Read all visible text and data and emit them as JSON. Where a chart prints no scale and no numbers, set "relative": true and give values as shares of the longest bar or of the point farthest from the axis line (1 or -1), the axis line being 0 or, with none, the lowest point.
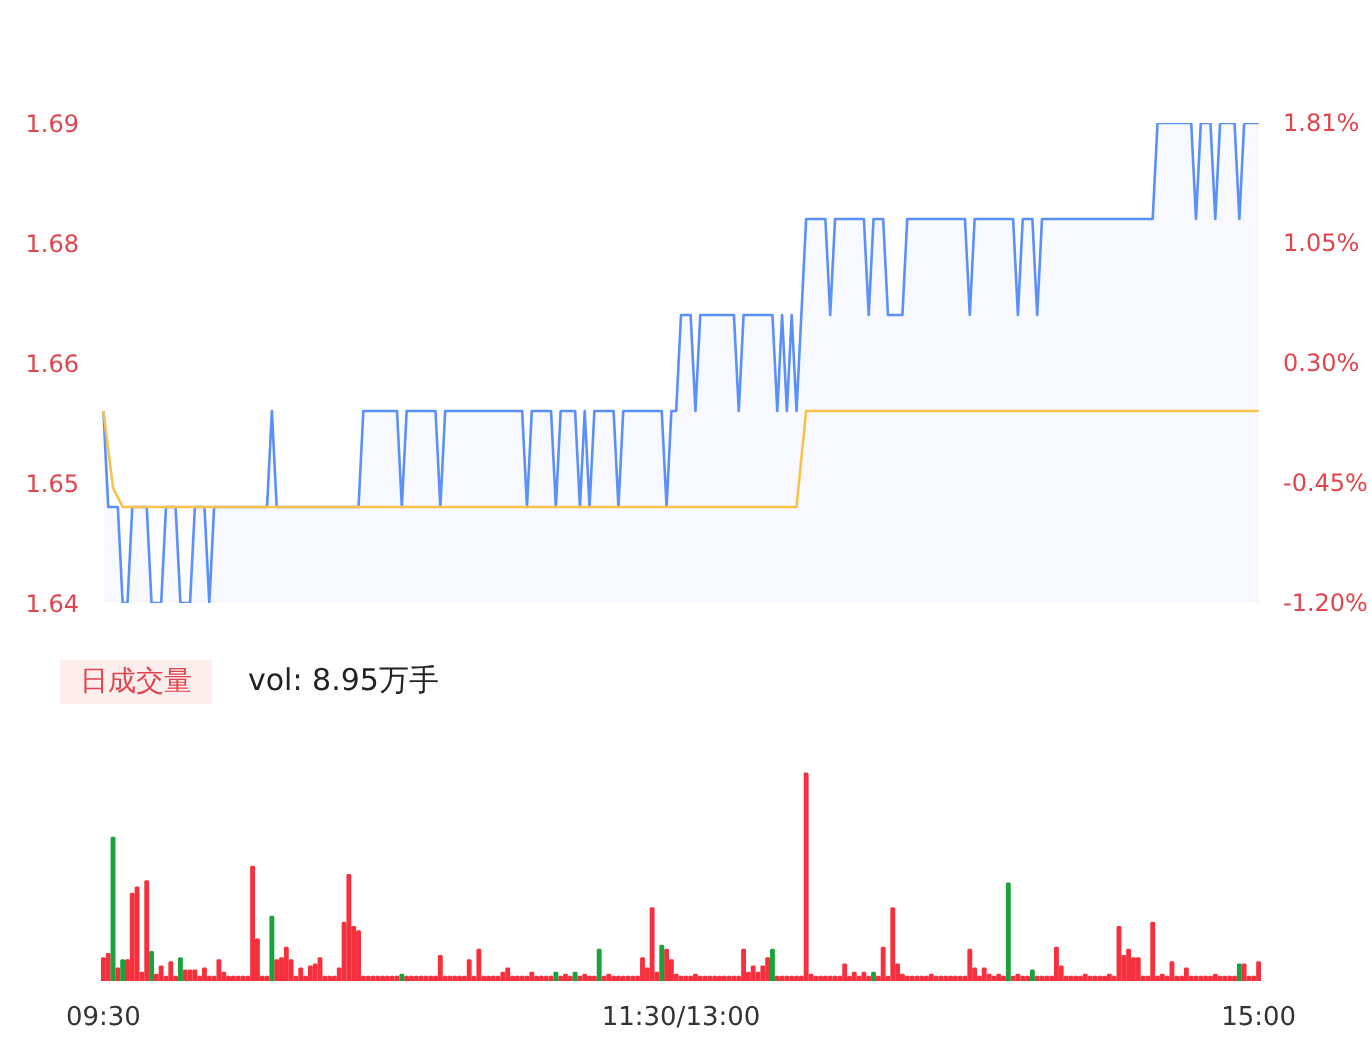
{
  "chart_data": [
    {
      "type": "line",
      "ylim": [
        1.64,
        1.69
      ],
      "categories": [
        null,
        null,
        null,
        null,
        null,
        null,
        null,
        null,
        null,
        null,
        null,
        null,
        null,
        null,
        null,
        null,
        null,
        null,
        null,
        null,
        null,
        null,
        null,
        null,
        null,
        null,
        null,
        null,
        null,
        null,
        null,
        null,
        null,
        null,
        null,
        null,
        null,
        null,
        null,
        null,
        null,
        null,
        null,
        null,
        null,
        null,
        null,
        null,
        null,
        null,
        null,
        null,
        null,
        null,
        null,
        null,
        null,
        null,
        null,
        null,
        null,
        null,
        null,
        null,
        null,
        null,
        null,
        null,
        null,
        null,
        null,
        null,
        null,
        null,
        null,
        null,
        null,
        null,
        null,
        null,
        null,
        null,
        null,
        null,
        null,
        null,
        null,
        null,
        null,
        null,
        null,
        null,
        null,
        null,
        null,
        null,
        null,
        null,
        null,
        null,
        null,
        null,
        null,
        null,
        null,
        null,
        null,
        null,
        null,
        null,
        null,
        null,
        null,
        null,
        null,
        null,
        null,
        null,
        null,
        null,
        null,
        null,
        null,
        null,
        null,
        null,
        null,
        null,
        null,
        null,
        null,
        null,
        null,
        null,
        null,
        null,
        null,
        null,
        null,
        null,
        null,
        null,
        null,
        null,
        null,
        null,
        null,
        null,
        null,
        null,
        null,
        null,
        null,
        null,
        null,
        null,
        null,
        null,
        null,
        null,
        null,
        null,
        null,
        null,
        null,
        null,
        null,
        null,
        null,
        null,
        null,
        null,
        null,
        null,
        null,
        null,
        null,
        null,
        null,
        null,
        null,
        null,
        null,
        null,
        null,
        null,
        null,
        null,
        null,
        null,
        null,
        null,
        null,
        null,
        null,
        null,
        null,
        null,
        null,
        null,
        null,
        null,
        null,
        null,
        null,
        null,
        null,
        null,
        null,
        null,
        null,
        null,
        null,
        null,
        null,
        null,
        null,
        null,
        null,
        null,
        null,
        null,
        null,
        null,
        null,
        null,
        null,
        null,
        null,
        null,
        null,
        null,
        null,
        null,
        null,
        null,
        null,
        null,
        null,
        null,
        null
      ],
      "yticks": [
        1.64,
        {
          "value": 1.6525,
          "label": "1.65"
        },
        {
          "value": 1.665,
          "label": "1.66"
        },
        {
          "value": 1.6775,
          "label": "1.68"
        },
        1.69
      ],
      "y2lim": [
        -1.2048,
        1.8072
      ],
      "y2ticks": [
        {
          "value": -1.2048,
          "label": "-1.20%"
        },
        {
          "value": -0.4518,
          "label": "-0.45%"
        },
        {
          "value": 0.3012,
          "label": "0.30%"
        },
        {
          "value": 1.0542,
          "label": "1.05%"
        },
        {
          "value": 1.8072,
          "label": "1.81%"
        }
      ],
      "tick_labels": "y",
      "grid": false,
      "series": [
        {
          "type": "area",
          "color": "#5b8ff9",
          "values": [
            1.66,
            1.65,
            1.65,
            1.65,
            1.64,
            1.64,
            1.65,
            1.65,
            1.65,
            1.65,
            1.64,
            1.64,
            1.64,
            1.65,
            1.65,
            1.65,
            1.64,
            1.64,
            1.64,
            1.65,
            1.65,
            1.65,
            1.64,
            1.65,
            1.65,
            1.65,
            1.65,
            1.65,
            1.65,
            1.65,
            1.65,
            1.65,
            1.65,
            1.65,
            1.65,
            1.66,
            1.65,
            1.65,
            1.65,
            1.65,
            1.65,
            1.65,
            1.65,
            1.65,
            1.65,
            1.65,
            1.65,
            1.65,
            1.65,
            1.65,
            1.65,
            1.65,
            1.65,
            1.65,
            1.66,
            1.66,
            1.66,
            1.66,
            1.66,
            1.66,
            1.66,
            1.66,
            1.65,
            1.66,
            1.66,
            1.66,
            1.66,
            1.66,
            1.66,
            1.66,
            1.65,
            1.66,
            1.66,
            1.66,
            1.66,
            1.66,
            1.66,
            1.66,
            1.66,
            1.66,
            1.66,
            1.66,
            1.66,
            1.66,
            1.66,
            1.66,
            1.66,
            1.66,
            1.65,
            1.66,
            1.66,
            1.66,
            1.66,
            1.66,
            1.65,
            1.66,
            1.66,
            1.66,
            1.66,
            1.65,
            1.66,
            1.65,
            1.66,
            1.66,
            1.66,
            1.66,
            1.66,
            1.65,
            1.66,
            1.66,
            1.66,
            1.66,
            1.66,
            1.66,
            1.66,
            1.66,
            1.66,
            1.65,
            1.66,
            1.66,
            1.67,
            1.67,
            1.67,
            1.66,
            1.67,
            1.67,
            1.67,
            1.67,
            1.67,
            1.67,
            1.67,
            1.67,
            1.66,
            1.67,
            1.67,
            1.67,
            1.67,
            1.67,
            1.67,
            1.67,
            1.66,
            1.67,
            1.66,
            1.67,
            1.66,
            1.67,
            1.68,
            1.68,
            1.68,
            1.68,
            1.68,
            1.67,
            1.68,
            1.68,
            1.68,
            1.68,
            1.68,
            1.68,
            1.68,
            1.67,
            1.68,
            1.68,
            1.68,
            1.67,
            1.67,
            1.67,
            1.67,
            1.68,
            1.68,
            1.68,
            1.68,
            1.68,
            1.68,
            1.68,
            1.68,
            1.68,
            1.68,
            1.68,
            1.68,
            1.68,
            1.67,
            1.68,
            1.68,
            1.68,
            1.68,
            1.68,
            1.68,
            1.68,
            1.68,
            1.68,
            1.67,
            1.68,
            1.68,
            1.68,
            1.67,
            1.68,
            1.68,
            1.68,
            1.68,
            1.68,
            1.68,
            1.68,
            1.68,
            1.68,
            1.68,
            1.68,
            1.68,
            1.68,
            1.68,
            1.68,
            1.68,
            1.68,
            1.68,
            1.68,
            1.68,
            1.68,
            1.68,
            1.68,
            1.68,
            1.69,
            1.69,
            1.69,
            1.69,
            1.69,
            1.69,
            1.69,
            1.69,
            1.68,
            1.69,
            1.69,
            1.69,
            1.68,
            1.69,
            1.69,
            1.69,
            1.69,
            1.68,
            1.69,
            1.69,
            1.69,
            1.69
          ]
        },
        {
          "type": "line",
          "color": "#f8c24d",
          "values": [
            1.66,
            1.656,
            1.652,
            1.651,
            1.65,
            1.65,
            1.65,
            1.65,
            1.65,
            1.65,
            1.65,
            1.65,
            1.65,
            1.65,
            1.65,
            1.65,
            1.65,
            1.65,
            1.65,
            1.65,
            1.65,
            1.65,
            1.65,
            1.65,
            1.65,
            1.65,
            1.65,
            1.65,
            1.65,
            1.65,
            1.65,
            1.65,
            1.65,
            1.65,
            1.65,
            1.65,
            1.65,
            1.65,
            1.65,
            1.65,
            1.65,
            1.65,
            1.65,
            1.65,
            1.65,
            1.65,
            1.65,
            1.65,
            1.65,
            1.65,
            1.65,
            1.65,
            1.65,
            1.65,
            1.65,
            1.65,
            1.65,
            1.65,
            1.65,
            1.65,
            1.65,
            1.65,
            1.65,
            1.65,
            1.65,
            1.65,
            1.65,
            1.65,
            1.65,
            1.65,
            1.65,
            1.65,
            1.65,
            1.65,
            1.65,
            1.65,
            1.65,
            1.65,
            1.65,
            1.65,
            1.65,
            1.65,
            1.65,
            1.65,
            1.65,
            1.65,
            1.65,
            1.65,
            1.65,
            1.65,
            1.65,
            1.65,
            1.65,
            1.65,
            1.65,
            1.65,
            1.65,
            1.65,
            1.65,
            1.65,
            1.65,
            1.65,
            1.65,
            1.65,
            1.65,
            1.65,
            1.65,
            1.65,
            1.65,
            1.65,
            1.65,
            1.65,
            1.65,
            1.65,
            1.65,
            1.65,
            1.65,
            1.65,
            1.65,
            1.65,
            1.65,
            1.65,
            1.65,
            1.65,
            1.65,
            1.65,
            1.65,
            1.65,
            1.65,
            1.65,
            1.65,
            1.65,
            1.65,
            1.65,
            1.65,
            1.65,
            1.65,
            1.65,
            1.65,
            1.65,
            1.65,
            1.65,
            1.65,
            1.65,
            1.65,
            1.655,
            1.66,
            1.66,
            1.66,
            1.66,
            1.66,
            1.66,
            1.66,
            1.66,
            1.66,
            1.66,
            1.66,
            1.66,
            1.66,
            1.66,
            1.66,
            1.66,
            1.66,
            1.66,
            1.66,
            1.66,
            1.66,
            1.66,
            1.66,
            1.66,
            1.66,
            1.66,
            1.66,
            1.66,
            1.66,
            1.66,
            1.66,
            1.66,
            1.66,
            1.66,
            1.66,
            1.66,
            1.66,
            1.66,
            1.66,
            1.66,
            1.66,
            1.66,
            1.66,
            1.66,
            1.66,
            1.66,
            1.66,
            1.66,
            1.66,
            1.66,
            1.66,
            1.66,
            1.66,
            1.66,
            1.66,
            1.66,
            1.66,
            1.66,
            1.66,
            1.66,
            1.66,
            1.66,
            1.66,
            1.66,
            1.66,
            1.66,
            1.66,
            1.66,
            1.66,
            1.66,
            1.66,
            1.66,
            1.66,
            1.66,
            1.66,
            1.66,
            1.66,
            1.66,
            1.66,
            1.66,
            1.66,
            1.66,
            1.66,
            1.66,
            1.66,
            1.66,
            1.66,
            1.66,
            1.66,
            1.66,
            1.66,
            1.66,
            1.66,
            1.66,
            1.66
          ]
        }
      ]
    },
    {
      "type": "bar",
      "relative": true,
      "tick_labels": "x",
      "grid": false,
      "categories": [
        "09:30",
        null,
        null,
        null,
        null,
        null,
        null,
        null,
        null,
        null,
        null,
        null,
        null,
        null,
        null,
        null,
        null,
        null,
        null,
        null,
        null,
        null,
        null,
        null,
        null,
        null,
        null,
        null,
        null,
        null,
        null,
        null,
        null,
        null,
        null,
        null,
        null,
        null,
        null,
        null,
        null,
        null,
        null,
        null,
        null,
        null,
        null,
        null,
        null,
        null,
        null,
        null,
        null,
        null,
        null,
        null,
        null,
        null,
        null,
        null,
        null,
        null,
        null,
        null,
        null,
        null,
        null,
        null,
        null,
        null,
        null,
        null,
        null,
        null,
        null,
        null,
        null,
        null,
        null,
        null,
        null,
        null,
        null,
        null,
        null,
        null,
        null,
        null,
        null,
        null,
        null,
        null,
        null,
        null,
        null,
        null,
        null,
        null,
        null,
        null,
        null,
        null,
        null,
        null,
        null,
        null,
        null,
        null,
        null,
        null,
        null,
        null,
        null,
        null,
        null,
        null,
        null,
        null,
        null,
        null,
        "11:30/13:00",
        null,
        null,
        null,
        null,
        null,
        null,
        null,
        null,
        null,
        null,
        null,
        null,
        null,
        null,
        null,
        null,
        null,
        null,
        null,
        null,
        null,
        null,
        null,
        null,
        null,
        null,
        null,
        null,
        null,
        null,
        null,
        null,
        null,
        null,
        null,
        null,
        null,
        null,
        null,
        null,
        null,
        null,
        null,
        null,
        null,
        null,
        null,
        null,
        null,
        null,
        null,
        null,
        null,
        null,
        null,
        null,
        null,
        null,
        null,
        null,
        null,
        null,
        null,
        null,
        null,
        null,
        null,
        null,
        null,
        null,
        null,
        null,
        null,
        null,
        null,
        null,
        null,
        null,
        null,
        null,
        null,
        null,
        null,
        null,
        null,
        null,
        null,
        null,
        null,
        null,
        null,
        null,
        null,
        null,
        null,
        null,
        null,
        null,
        null,
        null,
        null,
        null,
        null,
        null,
        null,
        null,
        null,
        null,
        null,
        null,
        null,
        null,
        null,
        null,
        null,
        null,
        null,
        null,
        null,
        "15:00"
      ],
      "annotations": [
        "日成交量",
        "vol: 8.95万手"
      ],
      "series": [
        {
          "color": "#f5313d",
          "values": [
            0.11,
            0.13,
            null,
            0.06,
            null,
            0.1,
            0.42,
            0.45,
            0.04,
            0.48,
            null,
            0.03,
            0.07,
            0.02,
            0.09,
            0.02,
            null,
            0.05,
            0.05,
            0.05,
            0.02,
            0.06,
            0.02,
            0.02,
            0.1,
            0.04,
            0.02,
            0.02,
            0.02,
            0.02,
            0.02,
            0.55,
            0.2,
            0.02,
            0.02,
            null,
            0.1,
            0.11,
            0.16,
            0.1,
            0.02,
            0.06,
            0.02,
            0.07,
            0.08,
            0.11,
            0.02,
            0.02,
            0.02,
            0.06,
            0.28,
            0.51,
            0.26,
            0.24,
            0.02,
            0.02,
            0.02,
            0.02,
            0.02,
            0.02,
            0.02,
            0.02,
            null,
            0.02,
            0.02,
            0.02,
            0.02,
            0.02,
            0.02,
            0.02,
            0.12,
            0.02,
            0.02,
            0.02,
            0.02,
            0.02,
            0.1,
            0.02,
            0.15,
            0.02,
            0.02,
            0.02,
            0.02,
            0.04,
            0.06,
            0.02,
            0.02,
            0.02,
            0.02,
            0.04,
            0.02,
            0.02,
            0.02,
            0.02,
            null,
            0.02,
            0.03,
            0.02,
            null,
            0.02,
            0.03,
            0.02,
            0.02,
            null,
            0.02,
            0.03,
            0.02,
            0.02,
            0.02,
            0.02,
            0.02,
            0.02,
            0.11,
            0.06,
            0.35,
            0.04,
            null,
            0.15,
            0.1,
            0.03,
            0.02,
            0.02,
            0.02,
            0.03,
            0.02,
            0.02,
            0.02,
            0.02,
            0.02,
            0.02,
            0.02,
            0.02,
            0.02,
            0.15,
            0.04,
            0.07,
            0.04,
            0.07,
            0.11,
            null,
            0.02,
            0.02,
            0.02,
            0.02,
            0.02,
            0.02,
            1.0,
            0.03,
            0.02,
            0.02,
            0.02,
            0.02,
            0.02,
            0.02,
            0.08,
            0.02,
            0.04,
            0.02,
            0.04,
            0.02,
            null,
            0.02,
            0.16,
            0.02,
            0.35,
            0.08,
            0.03,
            0.02,
            0.02,
            0.02,
            0.02,
            0.02,
            0.03,
            0.02,
            0.02,
            0.02,
            0.02,
            0.02,
            0.02,
            0.02,
            0.15,
            0.06,
            0.02,
            0.06,
            0.03,
            0.02,
            0.03,
            0.02,
            null,
            0.02,
            0.03,
            0.02,
            0.02,
            null,
            0.02,
            0.02,
            0.02,
            0.02,
            0.16,
            0.07,
            0.02,
            0.02,
            0.02,
            0.02,
            0.03,
            0.02,
            0.02,
            0.02,
            0.02,
            0.03,
            0.02,
            0.26,
            0.12,
            0.15,
            0.11,
            0.11,
            0.02,
            0.02,
            0.28,
            0.02,
            0.03,
            0.02,
            0.09,
            0.02,
            0.02,
            0.06,
            0.02,
            0.02,
            0.02,
            0.02,
            0.02,
            0.03,
            0.02,
            0.02,
            0.02,
            0.02,
            null,
            0.08,
            0.02,
            0.02,
            0.09
          ]
        },
        {
          "color": "#1aa33a",
          "values": [
            null,
            null,
            0.69,
            null,
            0.1,
            null,
            null,
            null,
            null,
            null,
            0.14,
            null,
            null,
            null,
            null,
            null,
            0.11,
            null,
            null,
            null,
            null,
            null,
            null,
            null,
            null,
            null,
            null,
            null,
            null,
            null,
            null,
            null,
            null,
            null,
            null,
            0.31,
            null,
            null,
            null,
            null,
            null,
            null,
            null,
            null,
            null,
            null,
            null,
            null,
            null,
            null,
            null,
            null,
            null,
            null,
            null,
            null,
            null,
            null,
            null,
            null,
            null,
            null,
            0.03,
            null,
            null,
            null,
            null,
            null,
            null,
            null,
            null,
            null,
            null,
            null,
            null,
            null,
            null,
            null,
            null,
            null,
            null,
            null,
            null,
            null,
            null,
            null,
            null,
            null,
            null,
            null,
            null,
            null,
            null,
            null,
            0.04,
            null,
            null,
            null,
            0.04,
            null,
            null,
            null,
            null,
            0.15,
            null,
            null,
            null,
            null,
            null,
            null,
            null,
            null,
            null,
            null,
            null,
            null,
            0.17,
            null,
            null,
            null,
            null,
            null,
            null,
            null,
            null,
            null,
            null,
            null,
            null,
            null,
            null,
            null,
            null,
            null,
            null,
            null,
            null,
            null,
            null,
            0.15,
            null,
            null,
            null,
            null,
            null,
            null,
            null,
            null,
            null,
            null,
            null,
            null,
            null,
            null,
            null,
            null,
            null,
            null,
            null,
            null,
            0.04,
            null,
            null,
            null,
            null,
            null,
            null,
            null,
            null,
            null,
            null,
            null,
            null,
            null,
            null,
            null,
            null,
            null,
            null,
            null,
            null,
            null,
            null,
            null,
            null,
            null,
            null,
            null,
            0.47,
            null,
            null,
            null,
            null,
            0.05,
            null,
            null,
            null,
            null,
            null,
            null,
            null,
            null,
            null,
            null,
            null,
            null,
            null,
            null,
            null,
            null,
            null,
            null,
            null,
            null,
            null,
            null,
            null,
            null,
            null,
            null,
            null,
            null,
            null,
            null,
            null,
            null,
            null,
            null,
            null,
            null,
            null,
            null,
            null,
            null,
            null,
            null,
            0.08,
            null,
            null,
            null,
            null
          ]
        }
      ]
    }
  ]
}
